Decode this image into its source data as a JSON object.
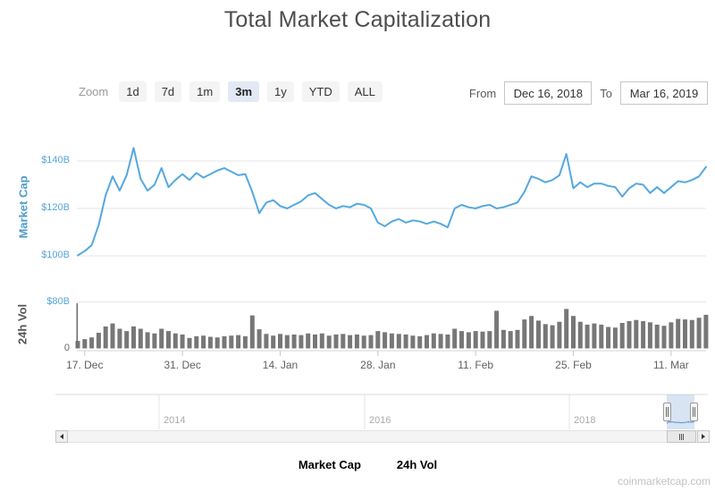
{
  "title": "Total Market Capitalization",
  "watermark": "coinmarketcap.com",
  "toolbar": {
    "zoom_label": "Zoom",
    "buttons": [
      {
        "label": "1d",
        "selected": false
      },
      {
        "label": "7d",
        "selected": false
      },
      {
        "label": "1m",
        "selected": false
      },
      {
        "label": "3m",
        "selected": true
      },
      {
        "label": "1y",
        "selected": false
      },
      {
        "label": "YTD",
        "selected": false
      },
      {
        "label": "ALL",
        "selected": false
      }
    ],
    "from_label": "From",
    "from_value": "Dec 16, 2018",
    "to_label": "To",
    "to_value": "Mar 16, 2019"
  },
  "legend": {
    "items": [
      {
        "name": "Market Cap",
        "marker": "line",
        "color": "#55a8e0"
      },
      {
        "name": "24h Vol",
        "marker": "circle",
        "color": "#757575"
      }
    ],
    "text_color": "#42759d"
  },
  "chart_data": {
    "type": "line",
    "title": "Total Market Capitalization",
    "x_start": "Dec 16, 2018",
    "x_end": "Mar 16, 2019",
    "x_unit": "day",
    "grid": true,
    "x_ticks": [
      {
        "day": 1,
        "label": "17. Dec"
      },
      {
        "day": 15,
        "label": "31. Dec"
      },
      {
        "day": 29,
        "label": "14. Jan"
      },
      {
        "day": 43,
        "label": "28. Jan"
      },
      {
        "day": 57,
        "label": "11. Feb"
      },
      {
        "day": 71,
        "label": "25. Feb"
      },
      {
        "day": 85,
        "label": "11. Mar"
      }
    ],
    "panes": [
      {
        "name": "Market Cap",
        "type": "line",
        "ylabel": "Market Cap",
        "color": "#55a8e0",
        "axis_color": "#55a5d9",
        "unit": "USD billions",
        "ylim": [
          95,
          150
        ],
        "yticks": [
          {
            "value": 140,
            "label": "$140B",
            "color": "#55a5d9"
          },
          {
            "value": 120,
            "label": "$120B",
            "color": "#55a5d9"
          },
          {
            "value": 100,
            "label": "$100B",
            "color": "#55a5d9"
          }
        ],
        "values": [
          100.2,
          102.0,
          104.5,
          113.0,
          125.5,
          133.5,
          127.5,
          134.0,
          145.5,
          132.5,
          127.5,
          130.0,
          137.0,
          129.0,
          132.0,
          134.5,
          132.0,
          135.0,
          133.0,
          134.5,
          136.0,
          137.0,
          135.5,
          134.0,
          134.5,
          127.0,
          118.0,
          122.5,
          123.5,
          121.0,
          120.0,
          121.5,
          123.0,
          125.5,
          126.5,
          124.0,
          121.5,
          120.0,
          121.0,
          120.5,
          122.0,
          121.5,
          120.0,
          114.0,
          112.5,
          114.5,
          115.5,
          114.0,
          115.0,
          114.5,
          113.5,
          114.5,
          113.5,
          112.0,
          120.0,
          121.5,
          120.5,
          120.0,
          121.0,
          121.5,
          120.0,
          120.5,
          121.5,
          122.5,
          127.0,
          133.5,
          132.5,
          131.0,
          132.0,
          134.0,
          143.0,
          128.5,
          131.0,
          129.0,
          130.5,
          130.5,
          129.5,
          129.0,
          125.0,
          128.5,
          130.5,
          130.0,
          126.5,
          129.0,
          126.5,
          129.0,
          131.5,
          131.0,
          132.0,
          133.5,
          137.5
        ]
      },
      {
        "name": "24h Vol",
        "type": "column",
        "ylabel": "24h Vol",
        "color": "#777777",
        "axis_title_color": "#555555",
        "unit": "USD billions",
        "ylim": [
          0,
          80
        ],
        "yticks": [
          {
            "value": 80,
            "label": "$80B",
            "color": "#55a5d9"
          },
          {
            "value": 0,
            "label": "0",
            "color": "#666666"
          }
        ],
        "values": [
          13,
          16,
          19,
          27,
          38,
          43,
          34,
          30,
          38,
          34,
          28,
          26,
          34,
          30,
          26,
          24,
          18,
          21,
          22,
          20,
          19,
          21,
          22,
          23,
          21,
          57,
          33,
          25,
          22,
          25,
          23,
          24,
          23,
          26,
          24,
          26,
          22,
          24,
          25,
          23,
          24,
          22,
          23,
          30,
          28,
          26,
          25,
          24,
          22,
          21,
          23,
          26,
          25,
          24,
          34,
          30,
          28,
          30,
          29,
          30,
          65,
          32,
          30,
          32,
          50,
          56,
          48,
          42,
          40,
          46,
          68,
          56,
          46,
          41,
          43,
          41,
          37,
          36,
          44,
          47,
          49,
          47,
          45,
          41,
          39,
          45,
          51,
          50,
          49,
          53,
          58
        ]
      }
    ],
    "navigator": {
      "range": "2013 - Mar 2019",
      "year_gridlines": [
        {
          "x": 178,
          "label": "2014"
        },
        {
          "x": 408,
          "label": "2016"
        },
        {
          "x": 637,
          "label": "2018"
        }
      ],
      "selection": {
        "from": "Dec 16, 2018",
        "to": "Mar 16, 2019"
      }
    }
  }
}
